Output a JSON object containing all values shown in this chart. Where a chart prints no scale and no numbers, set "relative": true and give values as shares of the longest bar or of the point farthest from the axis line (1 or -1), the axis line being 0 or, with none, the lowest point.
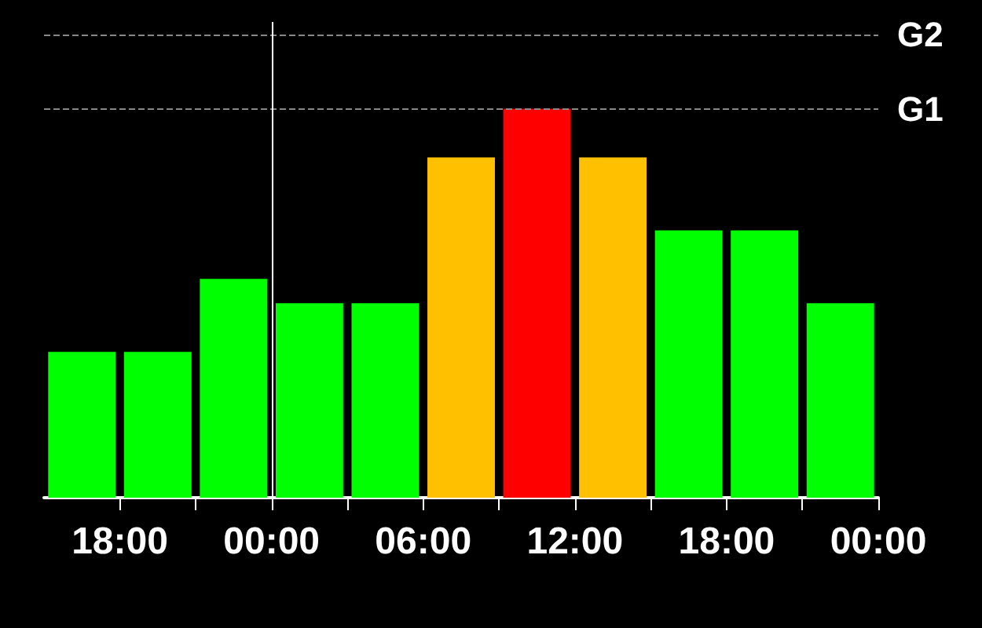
{
  "chart_data": {
    "type": "bar",
    "relative": true,
    "x": [
      "--01-01T16:30",
      "--01-01T19:30",
      "--01-01T22:30",
      "--01-02T01:30",
      "--01-02T04:30",
      "--01-02T07:30",
      "--01-02T10:30",
      "--01-02T13:30",
      "--01-02T16:30",
      "--01-02T19:30",
      "--01-02T22:30"
    ],
    "values": [
      0.375,
      0.375,
      0.5625,
      0.5,
      0.5,
      0.875,
      1,
      0.875,
      0.6875,
      0.6875,
      0.5
    ],
    "colors": [
      "#00ff00",
      "#00ff00",
      "#00ff00",
      "#00ff00",
      "#00ff00",
      "#ffc000",
      "#ff0000",
      "#ffc000",
      "#00ff00",
      "#00ff00",
      "#00ff00"
    ],
    "xlim": [
      "--01-01T15:00",
      "--01-03T00:00"
    ],
    "xticks": [
      {
        "value": "--01-01T18:00",
        "label": "18:00"
      },
      {
        "value": "--01-01T21:00",
        "label": null
      },
      {
        "value": "--01-02T00:00",
        "label": "00:00"
      },
      {
        "value": "--01-02T03:00",
        "label": null
      },
      {
        "value": "--01-02T06:00",
        "label": "06:00"
      },
      {
        "value": "--01-02T09:00",
        "label": null
      },
      {
        "value": "--01-02T12:00",
        "label": "12:00"
      },
      {
        "value": "--01-02T15:00",
        "label": null
      },
      {
        "value": "--01-02T18:00",
        "label": "18:00"
      },
      {
        "value": "--01-02T21:00",
        "label": null
      },
      {
        "value": "--01-03T00:00",
        "label": "00:00"
      }
    ],
    "ref_lines": [
      {
        "axis": "y",
        "value": 1,
        "label": "G1",
        "color": "#888888",
        "line_style": "dashed"
      },
      {
        "axis": "y",
        "value": 1.1875,
        "label": "G2",
        "color": "#888888",
        "line_style": "dashed"
      },
      {
        "axis": "x",
        "value": "--01-02T00:00",
        "color": "#ffffff",
        "line_style": "solid"
      }
    ]
  }
}
